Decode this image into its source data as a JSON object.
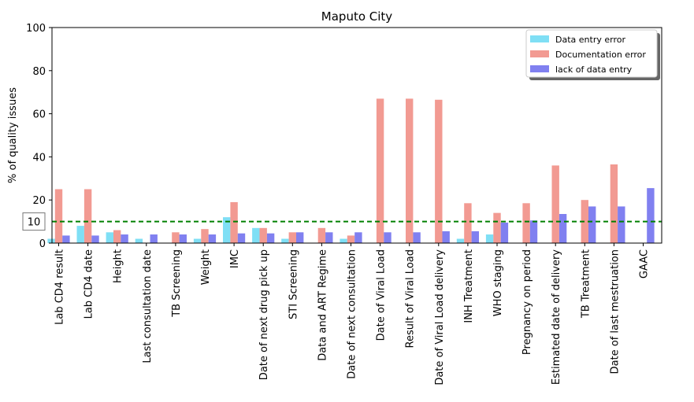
{
  "chart_data": {
    "type": "bar",
    "title": "Maputo City",
    "xlabel": "",
    "ylabel": "% of quality issues",
    "ylim": [
      0,
      100
    ],
    "yticks": [
      0,
      20,
      40,
      60,
      80,
      100
    ],
    "legend_position": "top-right",
    "categories": [
      "Lab CD4 result",
      "Lab CD4 date",
      "Height",
      "Last consultation date",
      "TB Screening",
      "Weight",
      "IMC",
      "Date of next drug pick up",
      "STI Screening",
      "Data and ART Regime",
      "Date of next consultation",
      "Date of Viral Load",
      "Result of Viral Load",
      "Date of Viral Load delivery",
      "INH Treatment",
      "WHO staging",
      "Pregnancy on period",
      "Estimated date of delivery",
      "TB Treatment",
      "Date of last mestruation",
      "GAAC"
    ],
    "series": [
      {
        "name": "Data entry error",
        "color": "#7fdff5",
        "values": [
          2,
          8,
          5,
          2,
          0,
          2,
          12,
          7,
          2,
          0,
          2,
          0,
          0,
          0,
          2,
          4,
          0,
          0,
          0,
          0,
          0
        ]
      },
      {
        "name": "Documentation error",
        "color": "#f29a92",
        "values": [
          25,
          25,
          6,
          0,
          5,
          6.5,
          19,
          7,
          5,
          7,
          3.5,
          67,
          67,
          66.5,
          18.5,
          14,
          18.5,
          36,
          20,
          36.5,
          0
        ]
      },
      {
        "name": "lack of data entry",
        "color": "#8080f0",
        "values": [
          3.5,
          3.5,
          4,
          4,
          4,
          4,
          4.5,
          4.5,
          5,
          5,
          5,
          5,
          5,
          5.5,
          5.5,
          9.5,
          10.5,
          13.5,
          17,
          17,
          25.5
        ]
      }
    ],
    "reference_line": {
      "value": 10,
      "label": "10",
      "color": "#008000",
      "style": "dashed"
    }
  }
}
